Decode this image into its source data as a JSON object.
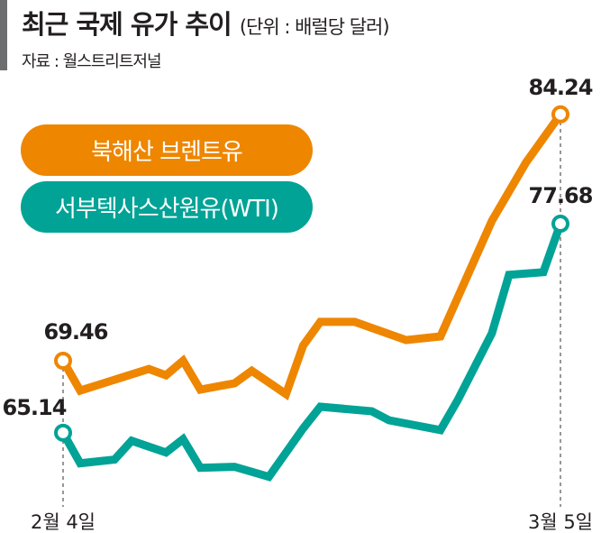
{
  "chart_data": {
    "type": "line",
    "title": "최근 국제 유가 추이",
    "unit": "(단위 : 배럴당 달러)",
    "source": "자료 : 월스트리트저널",
    "grid": false,
    "legend_placement": "top-left",
    "x_tick_labels": [
      "2월 4일",
      "3월 5일"
    ],
    "x_range": [
      "2021-02-04",
      "2021-03-05"
    ],
    "series": [
      {
        "name": "북해산 브렌트유",
        "color": "#EE8600",
        "start_label": "69.46",
        "end_label": "84.24",
        "points": [
          [
            "02-04",
            69.46
          ],
          [
            "02-05",
            67.67
          ],
          [
            "02-09",
            68.97
          ],
          [
            "02-10",
            68.59
          ],
          [
            "02-11",
            69.46
          ],
          [
            "02-12",
            67.73
          ],
          [
            "02-14",
            68.11
          ],
          [
            "02-15",
            68.86
          ],
          [
            "02-17",
            67.46
          ],
          [
            "02-18",
            70.38
          ],
          [
            "02-19",
            71.79
          ],
          [
            "02-21",
            71.79
          ],
          [
            "02-24",
            70.7
          ],
          [
            "02-26",
            70.92
          ],
          [
            "03-01",
            77.85
          ],
          [
            "03-03",
            81.36
          ],
          [
            "03-05",
            84.24
          ]
        ]
      },
      {
        "name": "서부텍사스산원유(WTI)",
        "color": "#00A396",
        "start_label": "65.14",
        "end_label": "77.68",
        "points": [
          [
            "02-04",
            65.14
          ],
          [
            "02-05",
            63.31
          ],
          [
            "02-07",
            63.53
          ],
          [
            "02-08",
            64.66
          ],
          [
            "02-10",
            63.96
          ],
          [
            "02-11",
            64.76
          ],
          [
            "02-12",
            63.04
          ],
          [
            "02-14",
            63.1
          ],
          [
            "02-16",
            62.5
          ],
          [
            "02-18",
            65.41
          ],
          [
            "02-19",
            66.7
          ],
          [
            "02-22",
            66.43
          ],
          [
            "02-23",
            65.89
          ],
          [
            "02-26",
            65.3
          ],
          [
            "02-27",
            67.08
          ],
          [
            "03-01",
            71.11
          ],
          [
            "03-02",
            74.61
          ],
          [
            "03-04",
            74.77
          ],
          [
            "03-05",
            77.68
          ]
        ]
      }
    ]
  }
}
